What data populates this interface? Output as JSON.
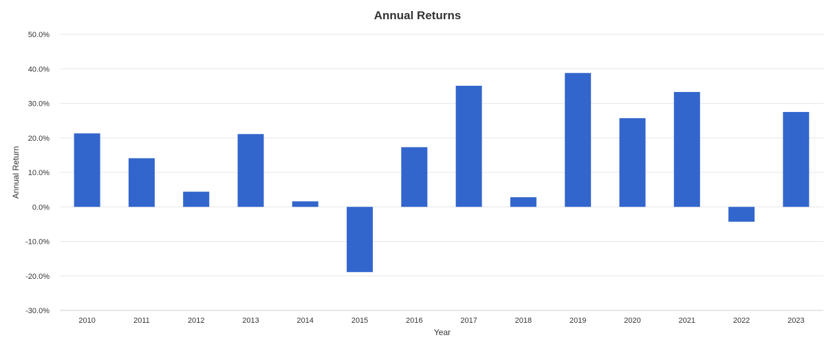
{
  "chart_data": {
    "type": "bar",
    "title": "Annual Returns",
    "xlabel": "Year",
    "ylabel": "Annual Return",
    "categories": [
      "2010",
      "2011",
      "2012",
      "2013",
      "2014",
      "2015",
      "2016",
      "2017",
      "2018",
      "2019",
      "2020",
      "2021",
      "2022",
      "2023"
    ],
    "values": [
      21.3,
      14.1,
      4.4,
      21.1,
      1.6,
      -18.9,
      17.3,
      35.1,
      2.8,
      38.8,
      25.7,
      33.3,
      -4.3,
      27.5
    ],
    "ylim": [
      -30,
      50
    ],
    "yticks": [
      50,
      40,
      30,
      20,
      10,
      0,
      -10,
      -20,
      -30
    ],
    "ytick_labels": [
      "50.0%",
      "40.0%",
      "30.0%",
      "20.0%",
      "10.0%",
      "0.0%",
      "-10.0%",
      "-20.0%",
      "-30.0%"
    ],
    "grid": true,
    "legend": "none",
    "bar_color": "#3366cc"
  }
}
